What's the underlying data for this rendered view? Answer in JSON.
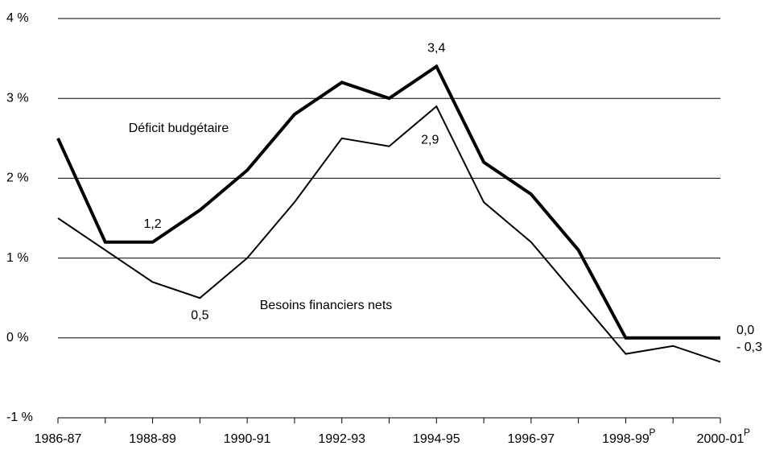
{
  "chart_data": {
    "type": "line",
    "categories": [
      "1986-87",
      null,
      "1988-89",
      null,
      "1990-91",
      null,
      "1992-93",
      null,
      "1994-95",
      null,
      "1996-97",
      null,
      "1998-99",
      null,
      "2000-01"
    ],
    "category_marks": [
      null,
      null,
      null,
      null,
      null,
      null,
      null,
      null,
      null,
      null,
      null,
      null,
      "P",
      null,
      "P"
    ],
    "series": [
      {
        "name": "Déficit budgétaire",
        "color": "#000000",
        "width": 4,
        "values": [
          2.5,
          1.2,
          1.2,
          1.6,
          2.1,
          2.8,
          3.2,
          3.0,
          3.4,
          2.2,
          1.8,
          1.1,
          0.0,
          0.0,
          0.0
        ],
        "value_labels": [
          null,
          null,
          "1,2",
          null,
          null,
          null,
          null,
          null,
          "3,4",
          null,
          null,
          null,
          null,
          null,
          "0,0"
        ]
      },
      {
        "name": "Besoins financiers nets",
        "color": "#000000",
        "width": 2,
        "values": [
          1.5,
          1.1,
          0.7,
          0.5,
          1.0,
          1.7,
          2.5,
          2.4,
          2.9,
          1.7,
          1.2,
          0.5,
          -0.2,
          -0.1,
          -0.3
        ],
        "value_labels": [
          null,
          null,
          null,
          "0,5",
          null,
          null,
          null,
          null,
          "2,9",
          null,
          null,
          null,
          null,
          null,
          "- 0,3"
        ]
      }
    ],
    "ylim": [
      -1,
      4
    ],
    "yticks": [
      {
        "value": -1,
        "label": "-1 %"
      },
      {
        "value": 0,
        "label": "0 %"
      },
      {
        "value": 1,
        "label": "1 %"
      },
      {
        "value": 2,
        "label": "2 %"
      },
      {
        "value": 3,
        "label": "3 %"
      },
      {
        "value": 4,
        "label": "4 %"
      }
    ],
    "grid": true
  }
}
